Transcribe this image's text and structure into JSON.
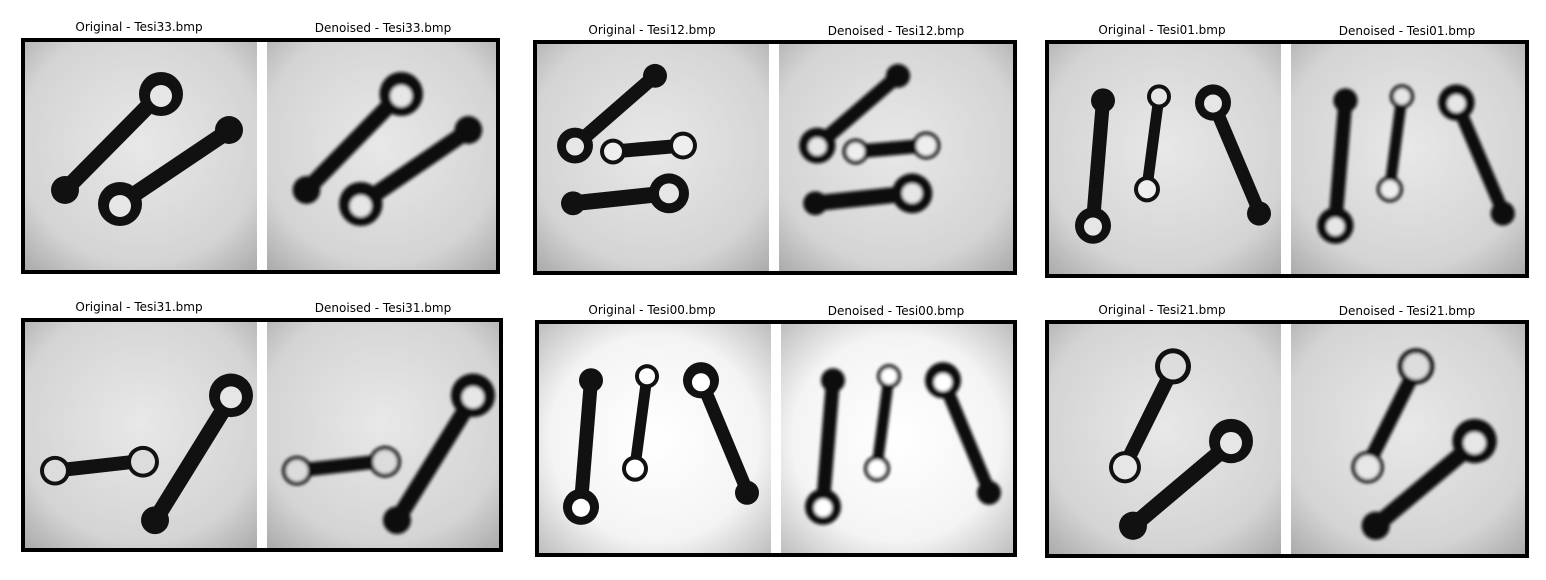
{
  "pairs": [
    {
      "original_title": "Original - Tesi33.bmp",
      "denoised_title": "Denoised - Tesi33.bmp",
      "scene": "s33"
    },
    {
      "original_title": "Original - Tesi12.bmp",
      "denoised_title": "Denoised - Tesi12.bmp",
      "scene": "s12"
    },
    {
      "original_title": "Original - Tesi01.bmp",
      "denoised_title": "Denoised - Tesi01.bmp",
      "scene": "s01"
    },
    {
      "original_title": "Original - Tesi31.bmp",
      "denoised_title": "Denoised - Tesi31.bmp",
      "scene": "s31"
    },
    {
      "original_title": "Original - Tesi00.bmp",
      "denoised_title": "Denoised - Tesi00.bmp",
      "scene": "s00"
    },
    {
      "original_title": "Original - Tesi21.bmp",
      "denoised_title": "Denoised - Tesi21.bmp",
      "scene": "s21"
    }
  ]
}
